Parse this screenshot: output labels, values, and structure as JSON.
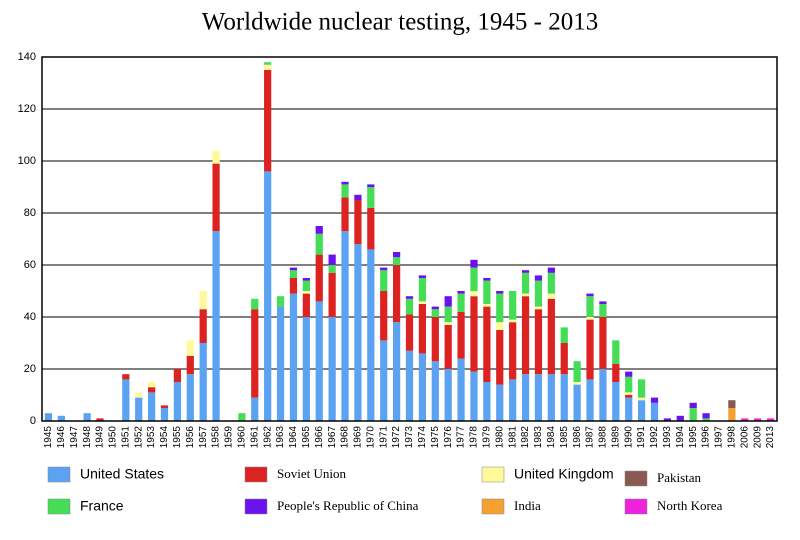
{
  "chart_data": {
    "type": "stacked_bar",
    "title": "Worldwide nuclear testing, 1945 - 2013",
    "categories": [
      "1945",
      "1946",
      "1947",
      "1948",
      "1949",
      "1950",
      "1951",
      "1952",
      "1953",
      "1954",
      "1955",
      "1956",
      "1957",
      "1958",
      "1959",
      "1960",
      "1961",
      "1962",
      "1963",
      "1964",
      "1965",
      "1966",
      "1967",
      "1968",
      "1969",
      "1970",
      "1971",
      "1972",
      "1973",
      "1974",
      "1975",
      "1976",
      "1977",
      "1978",
      "1979",
      "1980",
      "1981",
      "1982",
      "1983",
      "1984",
      "1985",
      "1986",
      "1987",
      "1988",
      "1989",
      "1990",
      "1991",
      "1992",
      "1993",
      "1994",
      "1995",
      "1996",
      "1997",
      "1998",
      "2006",
      "2009",
      "2013"
    ],
    "series": [
      {
        "name": "United States",
        "color": "#5ba3f2",
        "values": [
          3,
          2,
          0,
          3,
          0,
          0,
          16,
          9,
          11,
          5,
          15,
          18,
          30,
          73,
          0,
          0,
          9,
          96,
          44,
          49,
          40,
          46,
          40,
          73,
          68,
          66,
          31,
          38,
          27,
          26,
          23,
          20,
          24,
          19,
          15,
          14,
          16,
          18,
          18,
          18,
          18,
          14,
          16,
          20,
          15,
          9,
          8,
          7,
          0,
          0,
          0,
          0,
          0,
          0,
          0,
          0,
          0
        ]
      },
      {
        "name": "Soviet Union",
        "color": "#dd2222",
        "values": [
          0,
          0,
          0,
          0,
          1,
          0,
          2,
          0,
          2,
          1,
          5,
          7,
          13,
          26,
          0,
          0,
          34,
          39,
          0,
          6,
          9,
          18,
          17,
          13,
          17,
          16,
          19,
          22,
          14,
          19,
          17,
          17,
          18,
          29,
          29,
          21,
          22,
          30,
          25,
          29,
          12,
          0,
          23,
          20,
          7,
          1,
          0,
          0,
          0,
          0,
          0,
          0,
          0,
          0,
          0,
          0,
          0
        ]
      },
      {
        "name": "United Kingdom",
        "color": "#fff99a",
        "values": [
          0,
          0,
          0,
          0,
          0,
          0,
          0,
          2,
          2,
          0,
          0,
          6,
          7,
          5,
          0,
          0,
          0,
          2,
          0,
          0,
          1,
          0,
          0,
          0,
          0,
          0,
          0,
          0,
          0,
          1,
          0,
          1,
          0,
          2,
          1,
          3,
          1,
          1,
          1,
          2,
          0,
          1,
          1,
          0,
          0,
          1,
          1,
          0,
          0,
          0,
          0,
          0,
          0,
          0,
          0,
          0,
          0
        ]
      },
      {
        "name": "France",
        "color": "#44dd55",
        "values": [
          0,
          0,
          0,
          0,
          0,
          0,
          0,
          0,
          0,
          0,
          0,
          0,
          0,
          0,
          0,
          3,
          4,
          1,
          4,
          3,
          4,
          8,
          3,
          5,
          0,
          8,
          8,
          3,
          6,
          9,
          3,
          6,
          7,
          9,
          9,
          11,
          11,
          8,
          10,
          8,
          6,
          8,
          8,
          5,
          9,
          6,
          7,
          0,
          0,
          0,
          5,
          1,
          0,
          0,
          0,
          0,
          0
        ]
      },
      {
        "name": "People's Republic of China",
        "color": "#6a12ee",
        "values": [
          0,
          0,
          0,
          0,
          0,
          0,
          0,
          0,
          0,
          0,
          0,
          0,
          0,
          0,
          0,
          0,
          0,
          0,
          0,
          1,
          1,
          3,
          4,
          1,
          2,
          1,
          1,
          2,
          1,
          1,
          1,
          4,
          1,
          3,
          1,
          1,
          0,
          1,
          2,
          2,
          0,
          0,
          1,
          1,
          0,
          2,
          0,
          2,
          1,
          2,
          2,
          2,
          0,
          0,
          0,
          0,
          0
        ]
      },
      {
        "name": "India",
        "color": "#f5a030",
        "values": [
          0,
          0,
          0,
          0,
          0,
          0,
          0,
          0,
          0,
          0,
          0,
          0,
          0,
          0,
          0,
          0,
          0,
          0,
          0,
          0,
          0,
          0,
          0,
          0,
          0,
          0,
          0,
          0,
          0,
          0,
          0,
          0,
          0,
          0,
          0,
          0,
          0,
          0,
          0,
          0,
          0,
          0,
          0,
          0,
          0,
          0,
          0,
          0,
          0,
          0,
          0,
          0,
          0,
          5,
          0,
          0,
          0
        ]
      },
      {
        "name": "Pakistan",
        "color": "#8a5a52",
        "values": [
          0,
          0,
          0,
          0,
          0,
          0,
          0,
          0,
          0,
          0,
          0,
          0,
          0,
          0,
          0,
          0,
          0,
          0,
          0,
          0,
          0,
          0,
          0,
          0,
          0,
          0,
          0,
          0,
          0,
          0,
          0,
          0,
          0,
          0,
          0,
          0,
          0,
          0,
          0,
          0,
          0,
          0,
          0,
          0,
          0,
          0,
          0,
          0,
          0,
          0,
          0,
          0,
          0,
          3,
          0,
          0,
          0
        ]
      },
      {
        "name": "North Korea",
        "color": "#ee22dd",
        "values": [
          0,
          0,
          0,
          0,
          0,
          0,
          0,
          0,
          0,
          0,
          0,
          0,
          0,
          0,
          0,
          0,
          0,
          0,
          0,
          0,
          0,
          0,
          0,
          0,
          0,
          0,
          0,
          0,
          0,
          0,
          0,
          0,
          0,
          0,
          0,
          0,
          0,
          0,
          0,
          0,
          0,
          0,
          0,
          0,
          0,
          0,
          0,
          0,
          0,
          0,
          0,
          0,
          0,
          0,
          1,
          1,
          1
        ]
      }
    ],
    "ylim": [
      0,
      140
    ],
    "yticks": [
      0,
      20,
      40,
      60,
      80,
      100,
      120,
      140
    ],
    "grid": true
  }
}
